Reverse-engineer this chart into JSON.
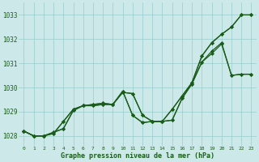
{
  "bg_color": "#cce8e8",
  "grid_color": "#99cccc",
  "line_color": "#1a5c1a",
  "marker_color": "#1a5c1a",
  "xlabel": "Graphe pression niveau de la mer (hPa)",
  "xlabel_color": "#1a5c1a",
  "ylabel_ticks": [
    1028,
    1029,
    1030,
    1031,
    1032,
    1033
  ],
  "xtick_labels": [
    "0",
    "1",
    "2",
    "3",
    "4",
    "5",
    "6",
    "7",
    "8",
    "9",
    "10",
    "11",
    "12",
    "13",
    "14",
    "15",
    "16",
    "17",
    "18",
    "19",
    "20",
    "21",
    "22",
    "23"
  ],
  "xlim": [
    -0.5,
    23.5
  ],
  "ylim": [
    1027.6,
    1033.5
  ],
  "series": [
    [
      1028.2,
      1028.0,
      1028.0,
      1028.15,
      1028.3,
      1029.05,
      1029.25,
      1029.25,
      1029.3,
      1029.3,
      1029.8,
      1029.75,
      1028.85,
      1028.6,
      1028.6,
      1029.1,
      1029.65,
      1030.2,
      1031.3,
      1031.85,
      1032.2,
      1032.5,
      1033.0,
      1033.0
    ],
    [
      1028.2,
      1028.0,
      1028.0,
      1028.1,
      1028.6,
      1029.1,
      1029.25,
      1029.3,
      1029.35,
      1029.3,
      1029.85,
      1028.85,
      1028.55,
      1028.6,
      1028.6,
      1028.65,
      1029.55,
      1030.15,
      1031.05,
      1031.5,
      1031.85,
      1030.5,
      1030.55,
      1030.55
    ],
    [
      1028.2,
      1028.0,
      1028.0,
      1028.1,
      1028.6,
      1029.1,
      1029.25,
      1029.3,
      1029.35,
      1029.3,
      1029.85,
      1028.85,
      1028.55,
      1028.6,
      1028.6,
      1028.65,
      1029.55,
      1030.15,
      1031.05,
      1031.4,
      1031.8,
      1030.5,
      1030.55,
      1030.55
    ],
    [
      1028.2,
      1028.0,
      1028.0,
      1028.15,
      1028.3,
      1029.05,
      1029.25,
      1029.25,
      1029.3,
      1029.3,
      1029.8,
      1029.75,
      1028.85,
      1028.6,
      1028.6,
      1029.1,
      1029.65,
      1030.2,
      1031.3,
      1031.85,
      1032.2,
      1032.5,
      1033.0,
      1033.0
    ]
  ],
  "figsize": [
    3.2,
    2.0
  ],
  "dpi": 100
}
